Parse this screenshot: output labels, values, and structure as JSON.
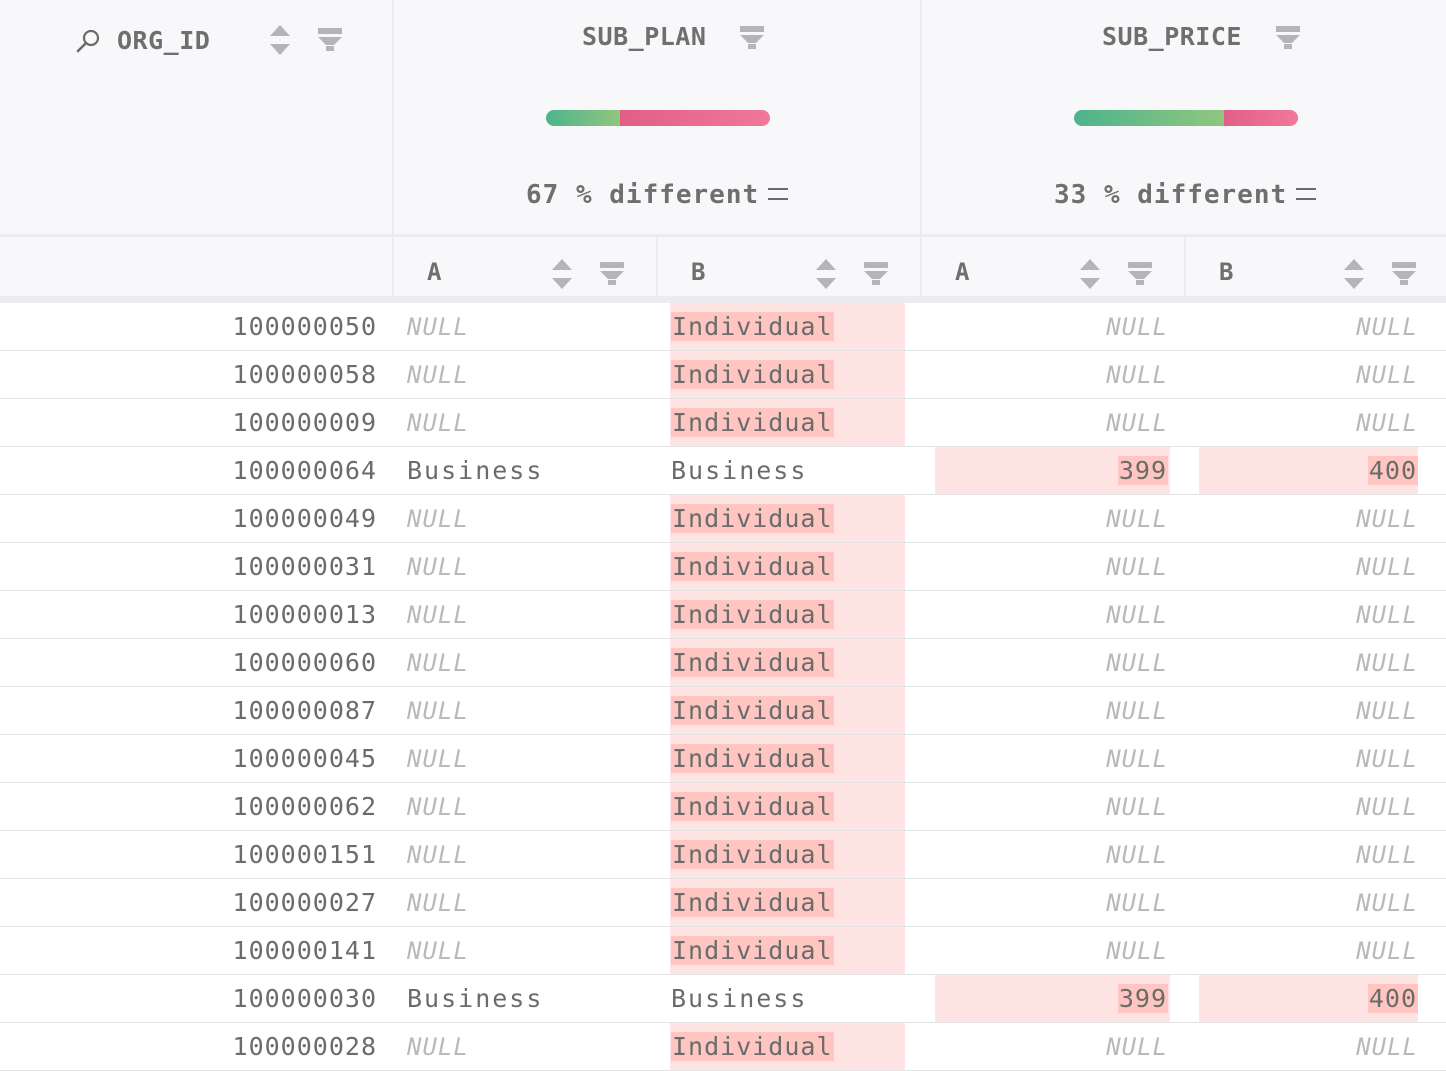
{
  "header": {
    "org_col": {
      "title": "ORG_ID",
      "icons": [
        "search-icon",
        "sort-icon",
        "filter-icon"
      ]
    },
    "plan_col": {
      "title": "SUB_PLAN",
      "diff_label": "67 % different",
      "diff_fraction": 0.67
    },
    "price_col": {
      "title": "SUB_PRICE",
      "diff_label": "33 % different",
      "diff_fraction": 0.33
    }
  },
  "subheader": {
    "a_label": "A",
    "b_label": "B"
  },
  "colors": {
    "same": "#4db48c",
    "different": "#e15f87",
    "diff_cell_bg": "#ffe4e4",
    "diff_highlight": "#ffc6c1"
  },
  "rows": [
    {
      "org_id": "100000050",
      "plan_a": "NULL",
      "plan_b": "Individual",
      "price_a": "NULL",
      "price_b": "NULL"
    },
    {
      "org_id": "100000058",
      "plan_a": "NULL",
      "plan_b": "Individual",
      "price_a": "NULL",
      "price_b": "NULL"
    },
    {
      "org_id": "100000009",
      "plan_a": "NULL",
      "plan_b": "Individual",
      "price_a": "NULL",
      "price_b": "NULL"
    },
    {
      "org_id": "100000064",
      "plan_a": "Business",
      "plan_b": "Business",
      "price_a": "399",
      "price_b": "400"
    },
    {
      "org_id": "100000049",
      "plan_a": "NULL",
      "plan_b": "Individual",
      "price_a": "NULL",
      "price_b": "NULL"
    },
    {
      "org_id": "100000031",
      "plan_a": "NULL",
      "plan_b": "Individual",
      "price_a": "NULL",
      "price_b": "NULL"
    },
    {
      "org_id": "100000013",
      "plan_a": "NULL",
      "plan_b": "Individual",
      "price_a": "NULL",
      "price_b": "NULL"
    },
    {
      "org_id": "100000060",
      "plan_a": "NULL",
      "plan_b": "Individual",
      "price_a": "NULL",
      "price_b": "NULL"
    },
    {
      "org_id": "100000087",
      "plan_a": "NULL",
      "plan_b": "Individual",
      "price_a": "NULL",
      "price_b": "NULL"
    },
    {
      "org_id": "100000045",
      "plan_a": "NULL",
      "plan_b": "Individual",
      "price_a": "NULL",
      "price_b": "NULL"
    },
    {
      "org_id": "100000062",
      "plan_a": "NULL",
      "plan_b": "Individual",
      "price_a": "NULL",
      "price_b": "NULL"
    },
    {
      "org_id": "100000151",
      "plan_a": "NULL",
      "plan_b": "Individual",
      "price_a": "NULL",
      "price_b": "NULL"
    },
    {
      "org_id": "100000027",
      "plan_a": "NULL",
      "plan_b": "Individual",
      "price_a": "NULL",
      "price_b": "NULL"
    },
    {
      "org_id": "100000141",
      "plan_a": "NULL",
      "plan_b": "Individual",
      "price_a": "NULL",
      "price_b": "NULL"
    },
    {
      "org_id": "100000030",
      "plan_a": "Business",
      "plan_b": "Business",
      "price_a": "399",
      "price_b": "400"
    },
    {
      "org_id": "100000028",
      "plan_a": "NULL",
      "plan_b": "Individual",
      "price_a": "NULL",
      "price_b": "NULL"
    }
  ]
}
